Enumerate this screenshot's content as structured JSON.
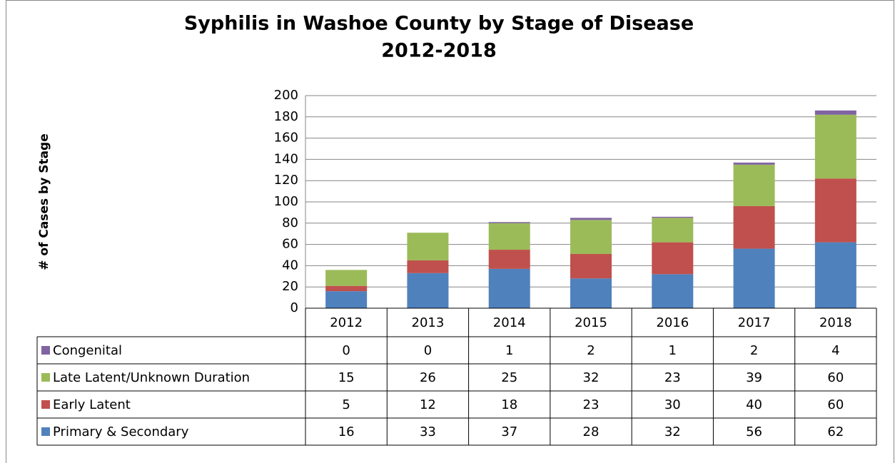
{
  "chart_data": {
    "type": "stacked_bar",
    "title": "Syphilis in Washoe County by Stage of Disease",
    "subtitle": "2012-2018",
    "y_label": "# of Cases by Stage",
    "categories": [
      "2012",
      "2013",
      "2014",
      "2015",
      "2016",
      "2017",
      "2018"
    ],
    "series": [
      {
        "name": "Primary & Secondary",
        "color": "#4f81bd",
        "values": [
          16,
          33,
          37,
          28,
          32,
          56,
          62
        ]
      },
      {
        "name": "Early Latent",
        "color": "#c0504d",
        "values": [
          5,
          12,
          18,
          23,
          30,
          40,
          60
        ]
      },
      {
        "name": "Late Latent/Unknown Duration",
        "color": "#9bbb59",
        "values": [
          15,
          26,
          25,
          32,
          23,
          39,
          60
        ]
      },
      {
        "name": "Congenital",
        "color": "#8064a2",
        "values": [
          0,
          0,
          1,
          2,
          1,
          2,
          4
        ]
      }
    ],
    "ylim": [
      0,
      200
    ],
    "yticks": [
      0,
      20,
      40,
      60,
      80,
      100,
      120,
      140,
      160,
      180,
      200
    ],
    "grid": true
  }
}
